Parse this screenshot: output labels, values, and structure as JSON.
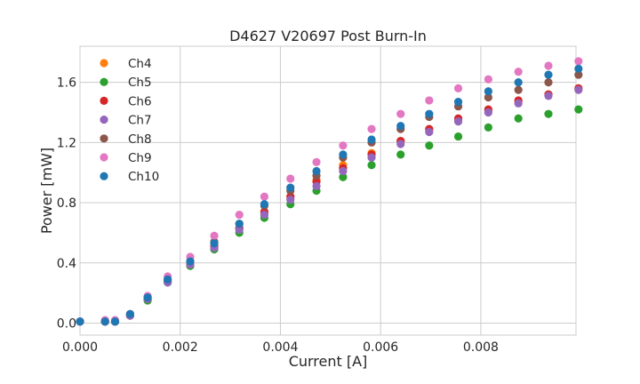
{
  "chart_data": {
    "type": "scatter",
    "title": "D4627 V20697 Post Burn-In",
    "xlabel": "Current [A]",
    "ylabel": "Power [mW]",
    "xlim": [
      0,
      0.0099
    ],
    "ylim": [
      -0.08,
      1.84
    ],
    "xticks": [
      0,
      0.002,
      0.004,
      0.006,
      0.008
    ],
    "xtick_labels": [
      "0.000",
      "0.002",
      "0.004",
      "0.006",
      "0.008"
    ],
    "yticks": [
      0,
      0.4,
      0.8,
      1.2,
      1.6
    ],
    "ytick_labels": [
      "0.0",
      "0.4",
      "0.8",
      "1.2",
      "1.6"
    ],
    "grid": true,
    "legend_position": "top-left",
    "x": [
      0,
      0.0005,
      0.0007,
      0.001,
      0.00135,
      0.00175,
      0.0022,
      0.00268,
      0.00318,
      0.00368,
      0.0042,
      0.00472,
      0.00525,
      0.00582,
      0.0064,
      0.00697,
      0.00755,
      0.00815,
      0.00875,
      0.00935,
      0.00995
    ],
    "series": [
      {
        "name": "Ch4",
        "color": "#ff7f0e",
        "values": [
          0.01,
          0.01,
          0.01,
          0.05,
          0.16,
          0.28,
          0.39,
          0.51,
          0.63,
          0.73,
          0.84,
          0.95,
          1.05,
          1.13,
          1.21,
          1.28,
          1.35,
          1.41,
          1.47,
          1.52,
          1.56
        ]
      },
      {
        "name": "Ch5",
        "color": "#2ca02c",
        "values": [
          0.01,
          0.01,
          0.01,
          0.05,
          0.15,
          0.27,
          0.38,
          0.49,
          0.6,
          0.7,
          0.79,
          0.88,
          0.97,
          1.05,
          1.12,
          1.18,
          1.24,
          1.3,
          1.36,
          1.39,
          1.42
        ]
      },
      {
        "name": "Ch6",
        "color": "#d62728",
        "values": [
          0.01,
          0.01,
          0.01,
          0.05,
          0.16,
          0.28,
          0.39,
          0.51,
          0.63,
          0.74,
          0.84,
          0.94,
          1.03,
          1.12,
          1.21,
          1.29,
          1.36,
          1.42,
          1.48,
          1.52,
          1.56
        ]
      },
      {
        "name": "Ch7",
        "color": "#9467bd",
        "values": [
          0.01,
          0.01,
          0.01,
          0.05,
          0.16,
          0.27,
          0.39,
          0.5,
          0.62,
          0.72,
          0.82,
          0.91,
          1.01,
          1.1,
          1.19,
          1.27,
          1.34,
          1.4,
          1.46,
          1.51,
          1.55
        ]
      },
      {
        "name": "Ch8",
        "color": "#8c564b",
        "values": [
          0.01,
          0.01,
          0.01,
          0.06,
          0.17,
          0.29,
          0.41,
          0.54,
          0.66,
          0.78,
          0.88,
          0.98,
          1.1,
          1.2,
          1.29,
          1.37,
          1.44,
          1.5,
          1.55,
          1.6,
          1.65
        ]
      },
      {
        "name": "Ch9",
        "color": "#e377c2",
        "values": [
          0.01,
          0.02,
          0.02,
          0.06,
          0.18,
          0.31,
          0.44,
          0.58,
          0.72,
          0.84,
          0.96,
          1.07,
          1.18,
          1.29,
          1.39,
          1.48,
          1.56,
          1.62,
          1.67,
          1.71,
          1.74
        ]
      },
      {
        "name": "Ch10",
        "color": "#1f77b4",
        "values": [
          0.01,
          0.01,
          0.01,
          0.06,
          0.17,
          0.29,
          0.41,
          0.53,
          0.66,
          0.79,
          0.9,
          1.01,
          1.12,
          1.22,
          1.31,
          1.39,
          1.47,
          1.54,
          1.6,
          1.65,
          1.69
        ]
      }
    ]
  }
}
